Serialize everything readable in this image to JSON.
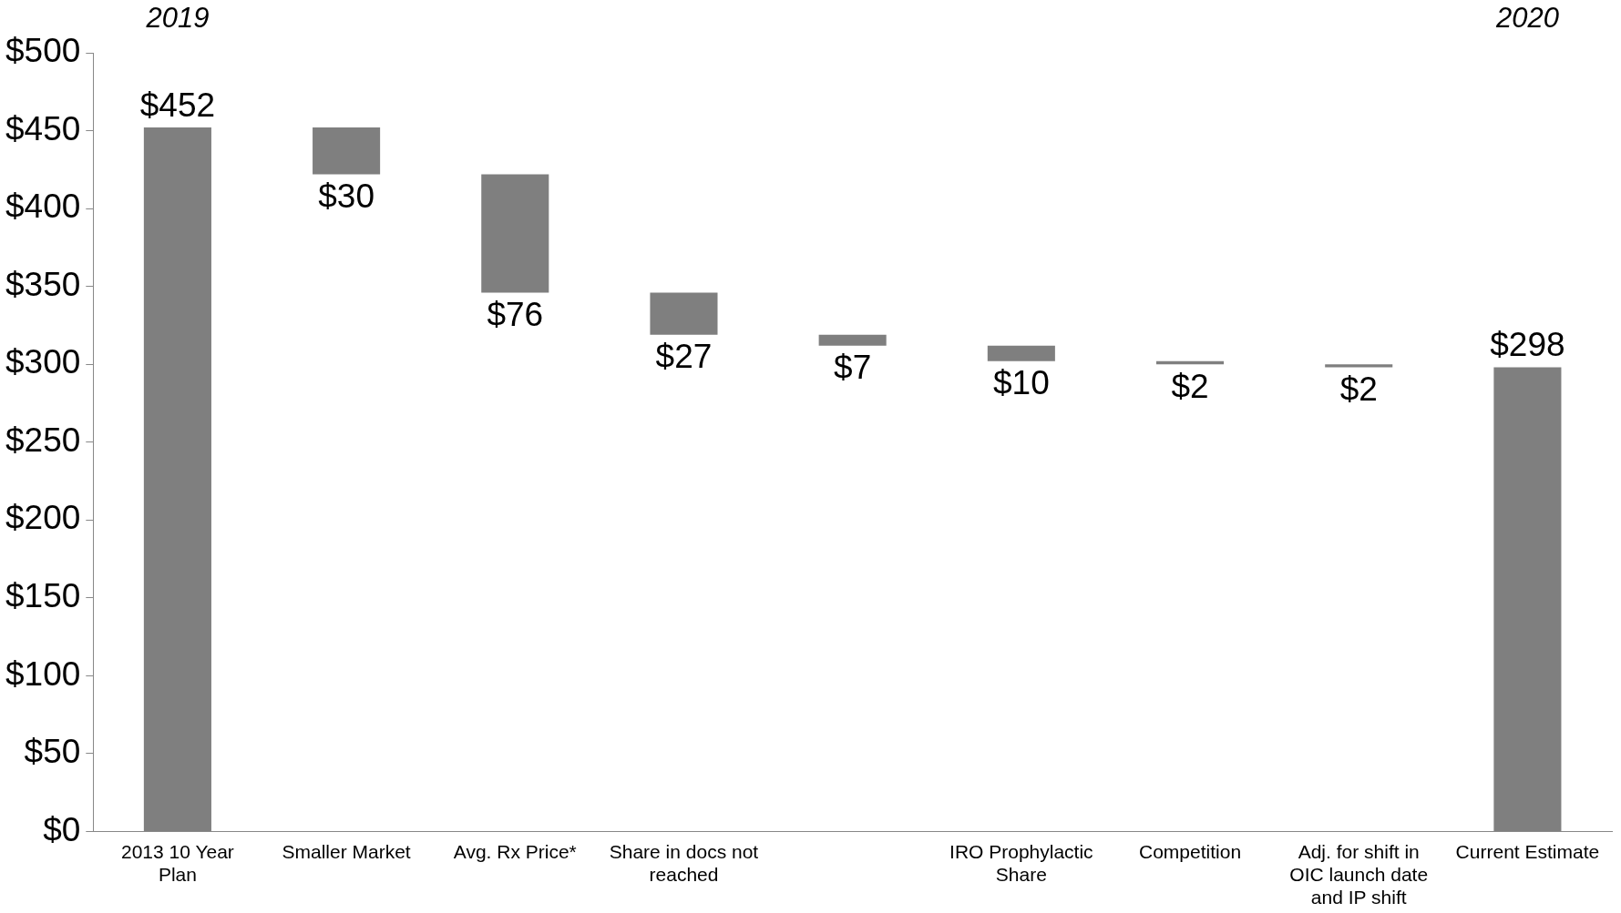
{
  "chart_data": {
    "type": "bar",
    "categories": [
      "2013 10 Year Plan",
      "Smaller Market",
      "Avg. Rx Price*",
      "Share in docs not reached",
      null,
      "IRO Prophylactic Share",
      "Competition",
      "Adj. for shift in OIC launch date and IP shift",
      "Current Estimate"
    ],
    "values": [
      452,
      30,
      76,
      27,
      7,
      10,
      2,
      2,
      298
    ],
    "base": [
      0,
      422,
      346,
      319,
      312,
      302,
      300,
      298,
      0
    ],
    "value_labels": [
      "$452",
      "$30",
      "$76",
      "$27",
      "$7",
      "$10",
      "$2",
      "$2",
      "$298"
    ],
    "color": "#7f7f7f",
    "ylim": [
      0,
      500
    ],
    "yticks": [
      {
        "value": 0,
        "label": "$0"
      },
      {
        "value": 50,
        "label": "$50"
      },
      {
        "value": 100,
        "label": "$100"
      },
      {
        "value": 150,
        "label": "$150"
      },
      {
        "value": 200,
        "label": "$200"
      },
      {
        "value": 250,
        "label": "$250"
      },
      {
        "value": 300,
        "label": "$300"
      },
      {
        "value": 350,
        "label": "$350"
      },
      {
        "value": 400,
        "label": "$400"
      },
      {
        "value": 450,
        "label": "$450"
      },
      {
        "value": 500,
        "label": "$500"
      }
    ],
    "grid": false,
    "legend": false,
    "annotations": [
      "2019",
      "2020"
    ]
  }
}
